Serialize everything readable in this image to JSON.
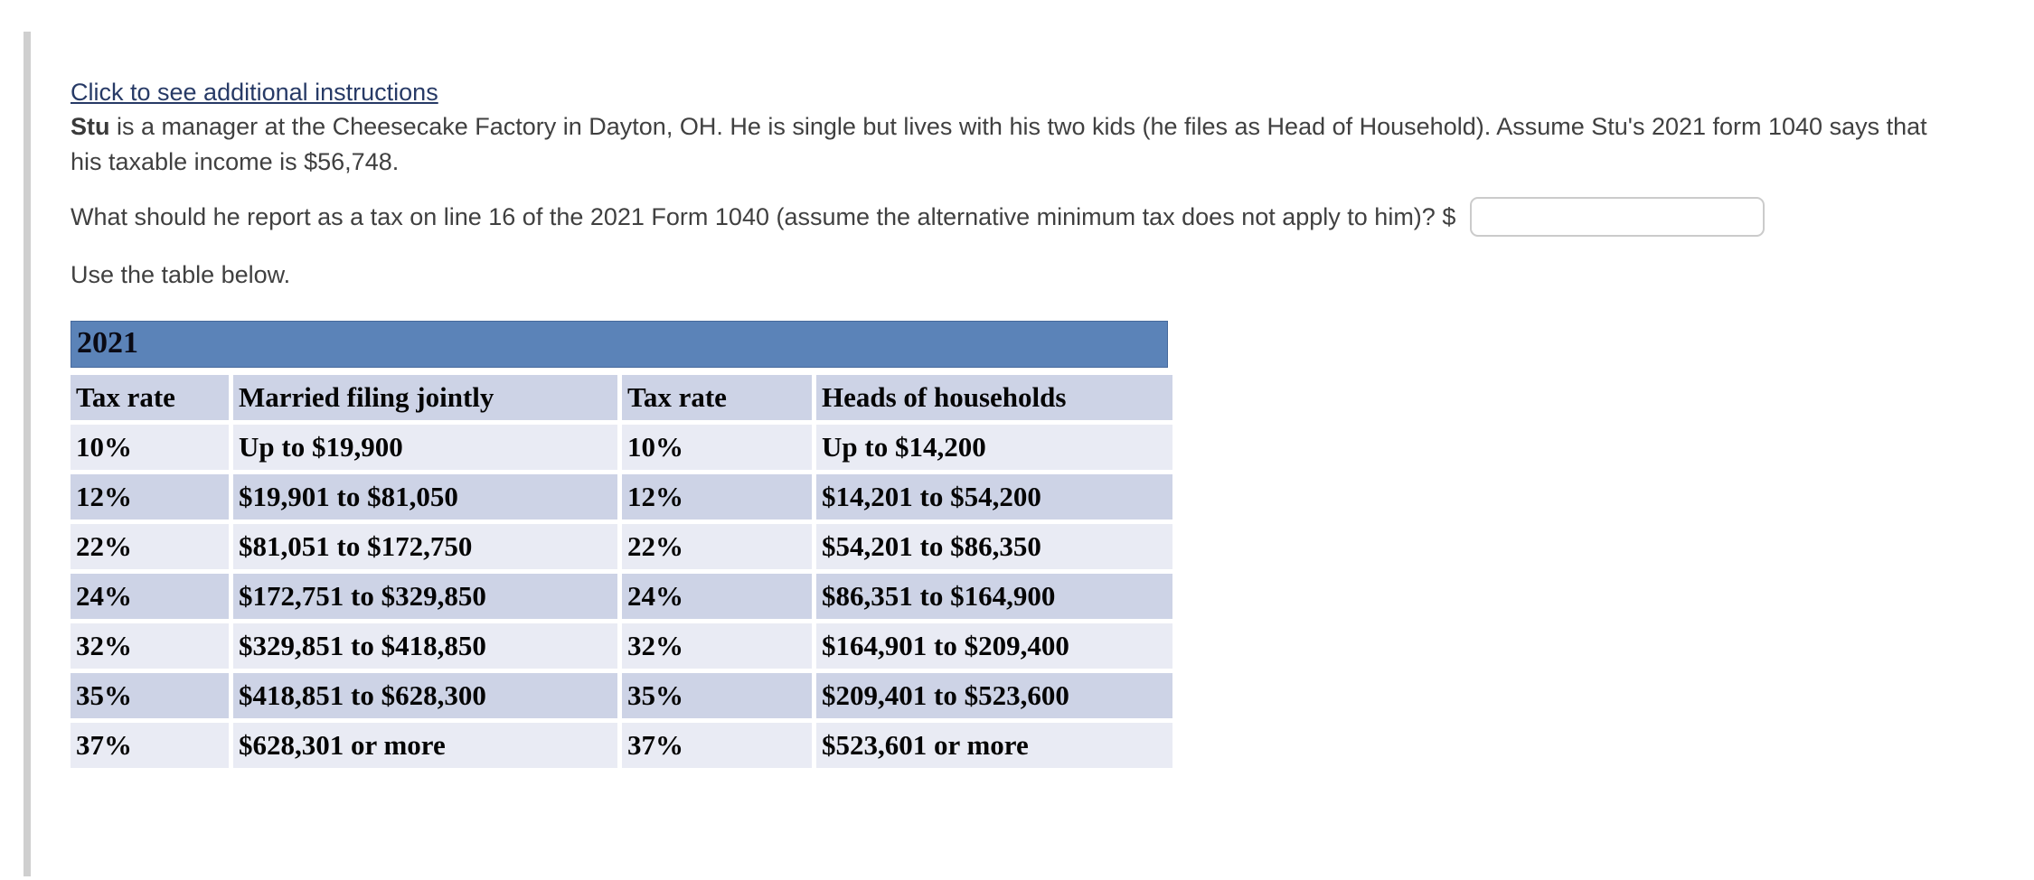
{
  "content": {
    "instructions_link": "Click to see additional instructions",
    "problem": {
      "bold_lead": "Stu",
      "line1_rest": " is a manager at the Cheesecake Factory in Dayton, OH. He is single but lives with his two kids (he files as Head of Household). Assume Stu's 2021 form 1040 says that his taxable income is $56,748.",
      "full_text": "Stu is a manager at the Cheesecake Factory in Dayton, OH. He is single but lives with his two kids (he files as Head of Household). Assume Stu's 2021 form 1040 says that his taxable income is $56,748."
    },
    "question": {
      "text": "What should he report as a tax on line 16 of the 2021 Form 1040 (assume the alternative minimum tax does not apply to him)? $",
      "answer_value": "",
      "answer_placeholder": ""
    },
    "table_intro": "Use the table below."
  },
  "tax_table": {
    "title": "2021",
    "columns": [
      "Tax rate",
      "Married filing jointly",
      "Tax rate",
      "Heads of households"
    ],
    "rows": [
      [
        "10%",
        "Up to $19,900",
        "10%",
        "Up to $14,200"
      ],
      [
        "12%",
        "$19,901 to $81,050",
        "12%",
        "$14,201 to $54,200"
      ],
      [
        "22%",
        "$81,051 to $172,750",
        "22%",
        "$54,201 to $86,350"
      ],
      [
        "24%",
        "$172,751 to $329,850",
        "24%",
        "$86,351 to $164,900"
      ],
      [
        "32%",
        "$329,851 to $418,850",
        "32%",
        "$164,901 to $209,400"
      ],
      [
        "35%",
        "$418,851 to $628,300",
        "35%",
        "$209,401 to $523,600"
      ],
      [
        "37%",
        "$628,301 or more",
        "37%",
        "$523,601 or more"
      ]
    ],
    "colors": {
      "title_bg": "#5b83b8",
      "band_dark": "#cdd3e6",
      "band_light": "#e9ebf4",
      "link_navy": "#273a66"
    }
  }
}
